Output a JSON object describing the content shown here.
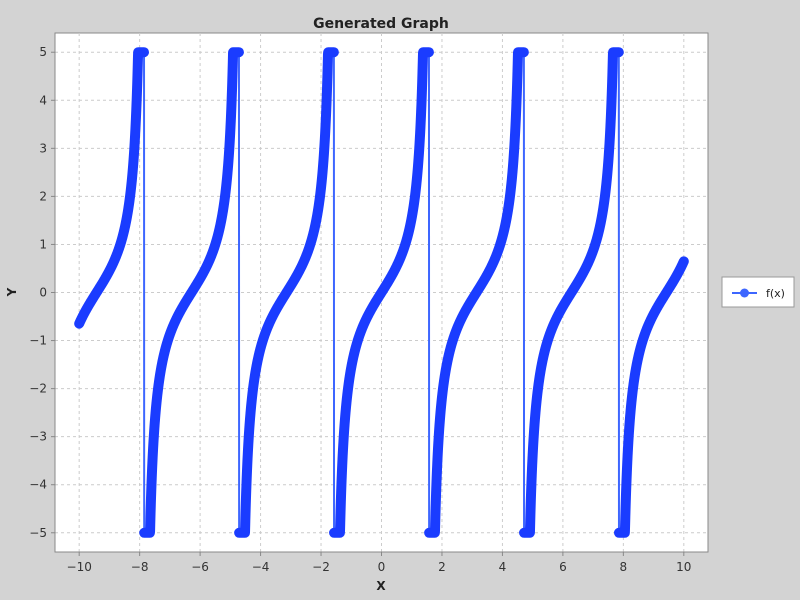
{
  "chart_data": {
    "type": "line",
    "title": "Generated Graph",
    "xlabel": "X",
    "ylabel": "Y",
    "xlim": [
      -10.8,
      10.8
    ],
    "ylim": [
      -5.4,
      5.4
    ],
    "xticks": [
      -10,
      -8,
      -6,
      -4,
      -2,
      0,
      2,
      4,
      6,
      8,
      10
    ],
    "yticks": [
      -5,
      -4,
      -3,
      -2,
      -1,
      0,
      1,
      2,
      3,
      4,
      5
    ],
    "grid": true,
    "legend_position": "right",
    "y_clip": [
      -5,
      5
    ],
    "series": [
      {
        "name": "f(x)",
        "function": "tan(x)",
        "x_range": [
          -10,
          10
        ],
        "color": "#1a3cff",
        "line_color": "#3d66ff"
      }
    ]
  }
}
